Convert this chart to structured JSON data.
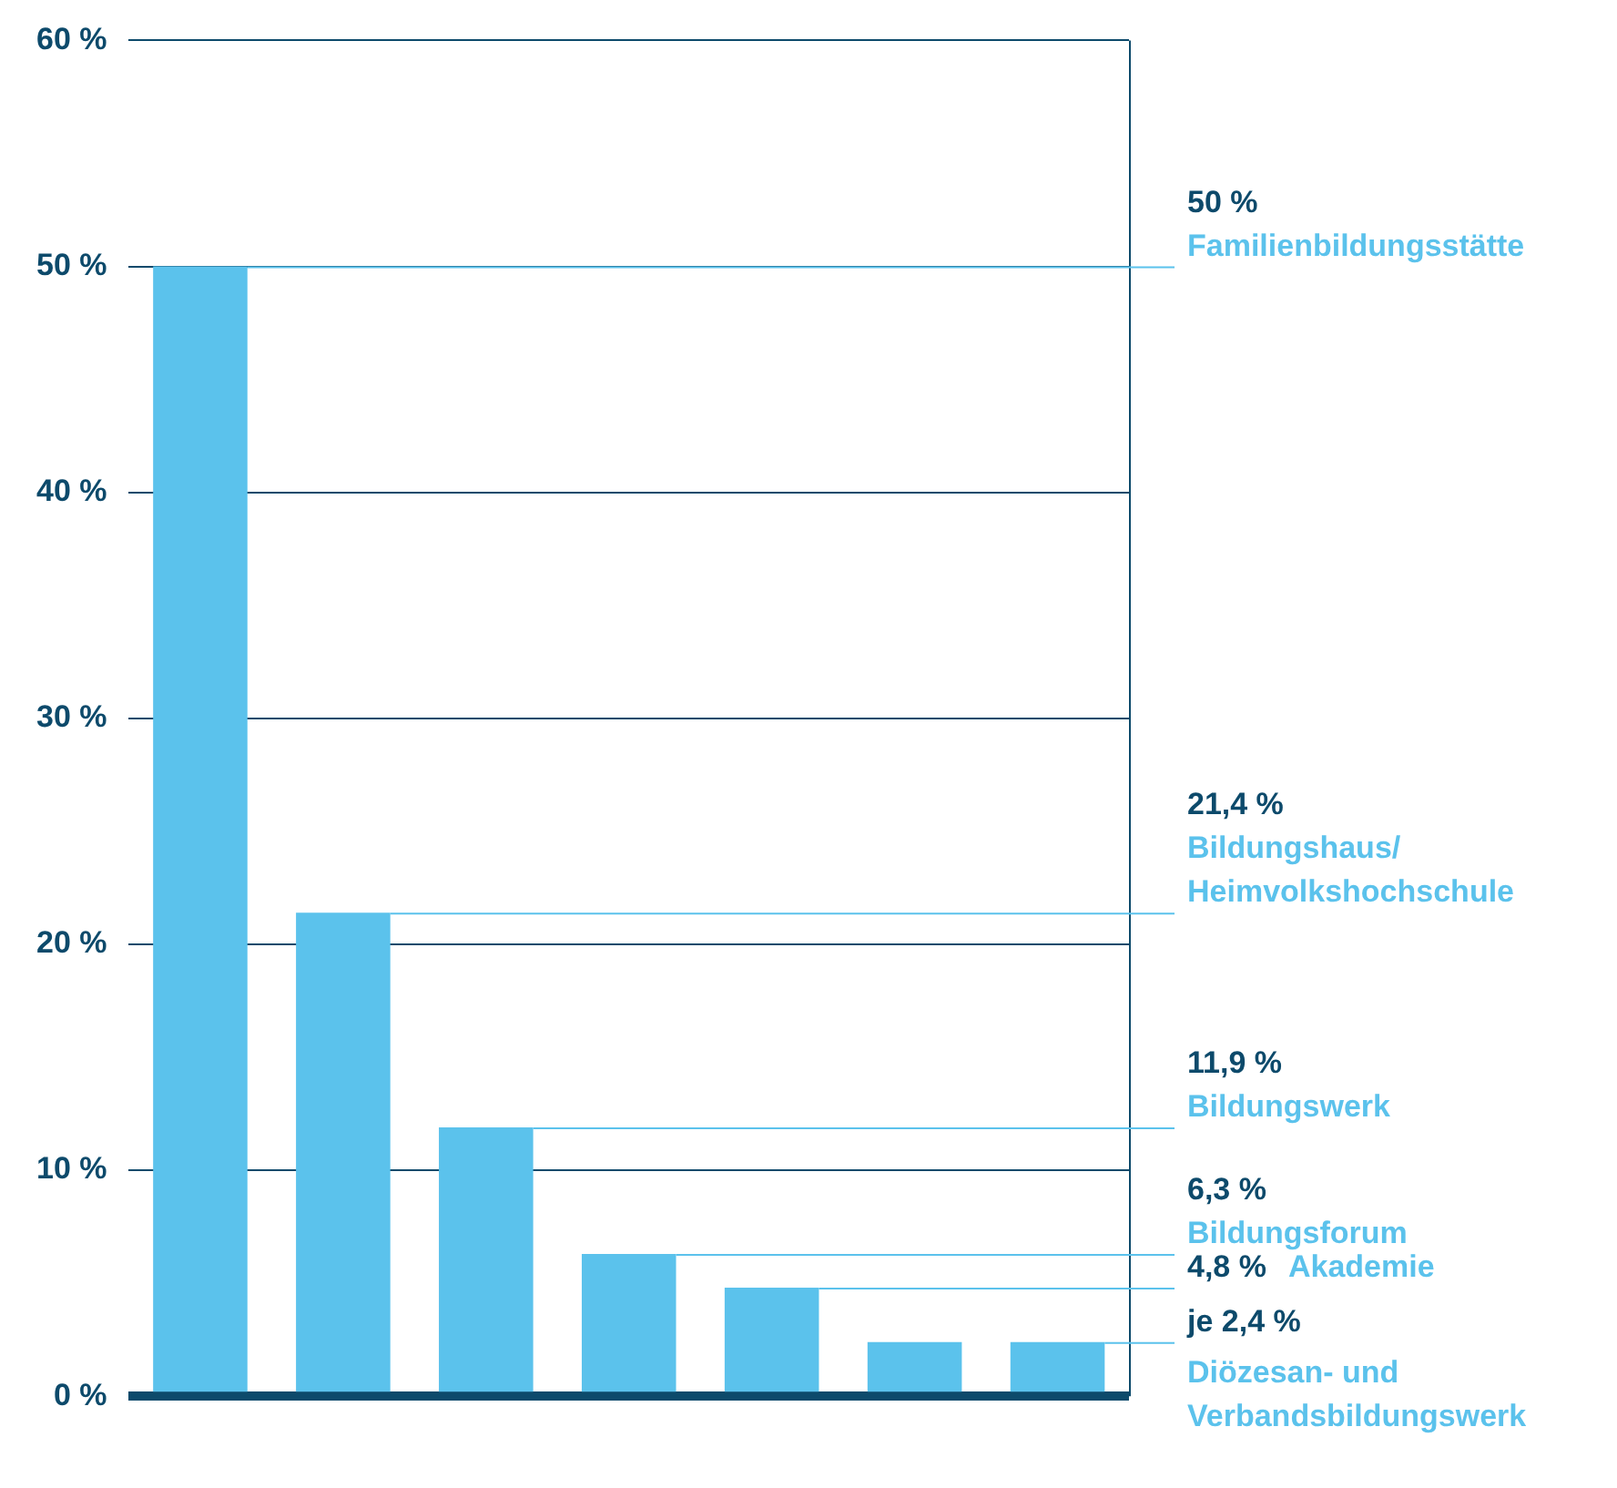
{
  "chart_data": {
    "type": "bar",
    "categories": [
      null,
      null,
      null,
      null,
      null,
      null,
      null
    ],
    "values": [
      50,
      21.4,
      11.9,
      6.3,
      4.8,
      2.4,
      2.4
    ],
    "color": "#5bc2ec",
    "ylim": [
      0,
      60
    ],
    "yticks": [
      {
        "value": 0,
        "label": "0 %"
      },
      {
        "value": 10,
        "label": "10 %"
      },
      {
        "value": 20,
        "label": "20 %"
      },
      {
        "value": 30,
        "label": "30 %"
      },
      {
        "value": 40,
        "label": "40 %"
      },
      {
        "value": 50,
        "label": "50 %"
      },
      {
        "value": 60,
        "label": "60 %"
      }
    ],
    "grid": "y",
    "legend": false,
    "ref_lines": [
      {
        "axis": "y",
        "value": 50,
        "label": "50 %\nFamilienbildungsstätte",
        "color": "#5bc2ec"
      },
      {
        "axis": "y",
        "value": 21.4,
        "label": "21,4 %\nBildungshaus/\nHeimvolkshochschule",
        "color": "#5bc2ec"
      },
      {
        "axis": "y",
        "value": 11.9,
        "label": "11,9 %\nBildungswerk",
        "color": "#5bc2ec"
      },
      {
        "axis": "y",
        "value": 6.3,
        "label": "6,3 %\nBildungsforum",
        "color": "#5bc2ec"
      },
      {
        "axis": "y",
        "value": 4.8,
        "label": "4,8 %\nAkademie",
        "color": "#5bc2ec"
      },
      {
        "axis": "y",
        "value": 2.4,
        "label": "je 2,4 %\nDiözesan- und\nVerbandsbildungswerk",
        "color": "#5bc2ec"
      }
    ]
  }
}
